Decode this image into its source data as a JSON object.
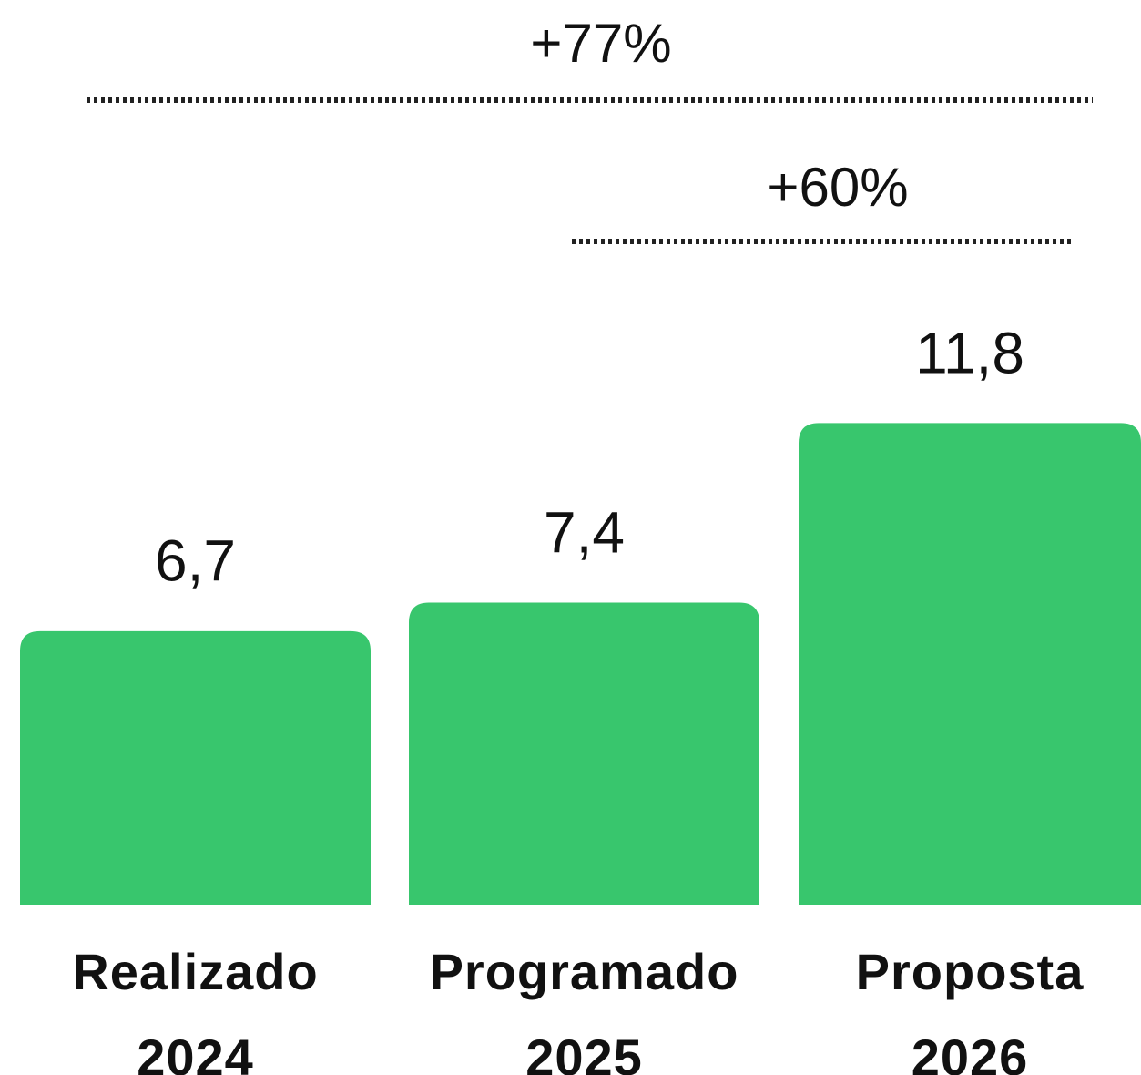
{
  "chart_data": {
    "type": "bar",
    "categories": [
      "Realizado\n2024",
      "Programado\n2025",
      "Proposta\n2026"
    ],
    "values": [
      6.7,
      7.4,
      11.8
    ],
    "value_labels": [
      "6,7",
      "7,4",
      "11,8"
    ],
    "color": "#38c66d",
    "ylim": [
      0,
      22
    ],
    "annotations": [
      "+77%",
      "+60%"
    ]
  }
}
